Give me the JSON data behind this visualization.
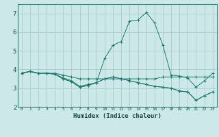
{
  "title": "",
  "xlabel": "Humidex (Indice chaleur)",
  "ylabel": "",
  "background_color": "#cce8e8",
  "grid_color": "#aacccc",
  "line_color": "#1a7a6e",
  "xlim": [
    -0.5,
    23.5
  ],
  "ylim": [
    2,
    7.5
  ],
  "xticks": [
    0,
    1,
    2,
    3,
    4,
    5,
    6,
    7,
    8,
    9,
    10,
    11,
    12,
    13,
    14,
    15,
    16,
    17,
    18,
    19,
    20,
    21,
    22,
    23
  ],
  "yticks": [
    2,
    3,
    4,
    5,
    6,
    7
  ],
  "line1_x": [
    0,
    1,
    2,
    3,
    4,
    5,
    6,
    7,
    8,
    9,
    10,
    11,
    12,
    13,
    14,
    15,
    16,
    17,
    18,
    19,
    20,
    21,
    22,
    23
  ],
  "line1_y": [
    3.8,
    3.9,
    3.8,
    3.8,
    3.8,
    3.7,
    3.6,
    3.5,
    3.5,
    3.5,
    3.5,
    3.5,
    3.5,
    3.5,
    3.5,
    3.5,
    3.5,
    3.6,
    3.6,
    3.6,
    3.6,
    3.6,
    3.6,
    3.6
  ],
  "line2_x": [
    0,
    1,
    2,
    3,
    4,
    5,
    6,
    7,
    8,
    9,
    10,
    11,
    12,
    13,
    14,
    15,
    16,
    17,
    18,
    19,
    20,
    21,
    22,
    23
  ],
  "line2_y": [
    3.8,
    3.9,
    3.8,
    3.8,
    3.75,
    3.55,
    3.4,
    3.1,
    3.2,
    3.3,
    3.5,
    3.6,
    3.5,
    3.4,
    3.3,
    3.2,
    3.1,
    3.05,
    3.0,
    2.85,
    2.8,
    2.35,
    2.6,
    2.8
  ],
  "line3_x": [
    0,
    1,
    2,
    3,
    4,
    5,
    6,
    7,
    8,
    9,
    10,
    11,
    12,
    13,
    14,
    15,
    16,
    17,
    18,
    19,
    20,
    21,
    22,
    23
  ],
  "line3_y": [
    3.8,
    3.9,
    3.8,
    3.8,
    3.75,
    3.5,
    3.35,
    3.05,
    3.15,
    3.3,
    4.6,
    5.3,
    5.5,
    6.6,
    6.65,
    7.05,
    6.5,
    5.3,
    3.7,
    3.65,
    3.55,
    3.05,
    3.4,
    3.8
  ],
  "line4_x": [
    0,
    1,
    2,
    3,
    4,
    5,
    6,
    7,
    8,
    9,
    10,
    11,
    12,
    13,
    14,
    15,
    16,
    17,
    18,
    19,
    20,
    21,
    22,
    23
  ],
  "line4_y": [
    3.8,
    3.9,
    3.8,
    3.8,
    3.75,
    3.5,
    3.35,
    3.05,
    3.15,
    3.3,
    3.5,
    3.6,
    3.5,
    3.4,
    3.3,
    3.2,
    3.1,
    3.05,
    3.0,
    2.85,
    2.8,
    2.35,
    2.6,
    2.8
  ]
}
